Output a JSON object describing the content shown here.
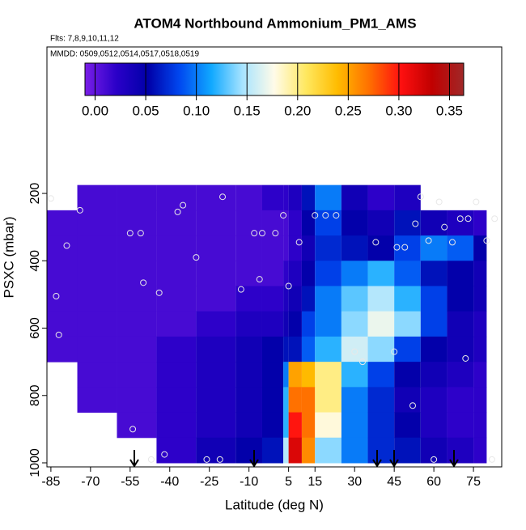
{
  "chart_data": {
    "type": "curtain",
    "title": "ATOM4 Northbound Ammonium_PM1_AMS",
    "subtitle_flights": "Flts: 7,8,9,10,11,12",
    "subtitle_dates": "MMDD: 0509,0512,0514,0517,0518,0519",
    "x_label": "Latitude (deg N)",
    "y_label": "PSXC (mbar)",
    "xlim": [
      -86.5,
      85.7
    ],
    "xticks": [
      -85,
      -70,
      -55,
      -40,
      -25,
      -10,
      5,
      15,
      30,
      45,
      60,
      75
    ],
    "ylim": [
      1012,
      -235
    ],
    "yticks": [
      200,
      400,
      600,
      800,
      1000
    ],
    "colorbar_lim": [
      -0.01,
      0.364
    ],
    "colorbar_ticks": [
      {
        "value": 0,
        "label": "0.00"
      },
      0.05,
      {
        "value": 0.1,
        "label": "0.10"
      },
      0.15,
      {
        "value": 0.2,
        "label": "0.20"
      },
      0.25,
      {
        "value": 0.3,
        "label": "0.30"
      },
      0.35
    ],
    "colormap": [
      "#7a1ee8",
      "#2a00c8",
      "#0000a8",
      "#0048f0",
      "#10a8ff",
      "#a8e4ff",
      "#fffbe8",
      "#ffe860",
      "#ffbc00",
      "#ff7000",
      "#ff1010",
      "#c00000",
      "#a02828"
    ],
    "lat_edges": [
      -87,
      -75,
      -60,
      -45,
      -30,
      -15,
      -5,
      3,
      5,
      10,
      15,
      25,
      35,
      45,
      55,
      65,
      75,
      80
    ],
    "pressure_edges": [
      175,
      250,
      325,
      400,
      475,
      550,
      625,
      700,
      775,
      850,
      925,
      1000
    ],
    "values": [
      [
        null,
        0.01,
        0.01,
        0.01,
        0.01,
        0.01,
        0.02,
        0.02,
        0.03,
        0.06,
        0.1,
        0.04,
        0.02,
        0.03,
        null,
        null,
        null
      ],
      [
        0.01,
        0.01,
        0.01,
        0.01,
        0.01,
        0.01,
        0.01,
        0.01,
        0.02,
        0.05,
        0.08,
        0.05,
        0.04,
        0.06,
        0.04,
        0.03,
        0.02
      ],
      [
        0.01,
        0.01,
        0.01,
        0.01,
        0.01,
        0.01,
        0.01,
        0.01,
        0.02,
        0.04,
        0.07,
        0.06,
        0.05,
        0.08,
        0.1,
        0.09,
        0.05
      ],
      [
        0.01,
        0.01,
        0.01,
        0.01,
        0.01,
        0.01,
        0.01,
        0.02,
        0.03,
        0.05,
        0.08,
        0.1,
        0.12,
        0.09,
        0.06,
        0.05,
        0.04
      ],
      [
        0.01,
        0.01,
        0.01,
        0.01,
        0.01,
        0.02,
        0.02,
        0.03,
        0.04,
        0.06,
        0.1,
        0.13,
        0.15,
        0.12,
        0.08,
        0.05,
        0.04
      ],
      [
        0.01,
        0.01,
        0.01,
        0.01,
        0.02,
        0.03,
        0.03,
        0.04,
        0.05,
        0.08,
        0.1,
        0.14,
        0.17,
        0.14,
        0.08,
        0.04,
        0.03
      ],
      [
        0.01,
        0.01,
        0.01,
        0.02,
        0.03,
        0.04,
        0.05,
        0.06,
        0.06,
        0.09,
        0.12,
        0.16,
        0.14,
        0.08,
        0.05,
        0.04,
        0.03
      ],
      [
        null,
        0.01,
        0.01,
        0.02,
        0.03,
        0.04,
        0.05,
        0.1,
        0.25,
        0.24,
        0.2,
        0.12,
        0.08,
        0.05,
        0.04,
        0.03,
        0.02
      ],
      [
        null,
        0.01,
        0.01,
        0.02,
        0.03,
        0.04,
        0.05,
        0.12,
        0.27,
        0.27,
        0.2,
        0.1,
        0.07,
        0.04,
        0.03,
        0.02,
        0.02
      ],
      [
        null,
        null,
        0.01,
        0.02,
        0.03,
        0.04,
        0.05,
        0.12,
        0.3,
        0.27,
        0.18,
        0.1,
        0.07,
        0.05,
        0.03,
        0.02,
        0.02
      ],
      [
        null,
        null,
        null,
        0.02,
        0.04,
        0.05,
        0.06,
        0.15,
        0.32,
        0.26,
        0.14,
        0.1,
        0.07,
        0.06,
        0.04,
        0.03,
        0.02
      ]
    ],
    "samples_lat": [
      -85,
      -74,
      -79,
      -83,
      -82,
      -55,
      -51,
      -50,
      -44,
      -37,
      -35,
      -30,
      -20,
      -13,
      -8,
      -5,
      -6,
      0,
      3,
      5,
      9,
      15,
      19,
      23,
      30,
      33,
      38,
      46,
      49,
      53,
      55,
      58,
      62,
      64,
      67,
      70,
      73,
      76,
      80,
      83,
      -54,
      -47,
      -42,
      -26,
      -21,
      45,
      52,
      60,
      72,
      82
    ],
    "samples_p": [
      215,
      250,
      355,
      505,
      620,
      318,
      318,
      465,
      495,
      255,
      235,
      390,
      210,
      485,
      318,
      318,
      455,
      318,
      265,
      475,
      345,
      265,
      265,
      265,
      670,
      700,
      345,
      360,
      360,
      290,
      210,
      340,
      225,
      300,
      345,
      275,
      275,
      225,
      340,
      275,
      900,
      990,
      975,
      990,
      990,
      670,
      830,
      990,
      690,
      990
    ]
  }
}
